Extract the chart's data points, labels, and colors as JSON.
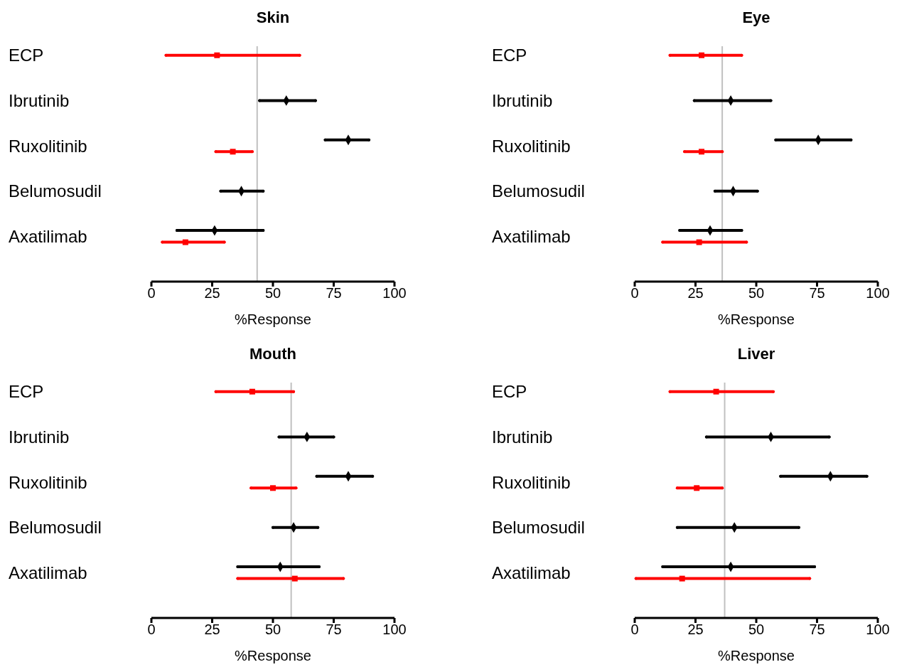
{
  "chart_data": [
    {
      "type": "scatter",
      "orientation": "horizontal",
      "title": "Skin",
      "xlabel": "%Response",
      "categories": [
        "ECP",
        "Ibrutinib",
        "Ruxolitinib",
        "Belumosudil",
        "Axatilimab"
      ],
      "xlim": [
        0,
        100
      ],
      "xticks": [
        0,
        25,
        50,
        75,
        100
      ],
      "grid": false,
      "legend": false,
      "ref_lines": [
        {
          "axis": "x",
          "value": 43.5,
          "color": "#c0c0c0"
        }
      ],
      "series": [
        {
          "color": "#000000",
          "marker": "diamond",
          "values": [
            null,
            55.5,
            81,
            37,
            26
          ],
          "errors": [
            null,
            [
              44.5,
              67.5
            ],
            [
              71.5,
              89.5
            ],
            [
              28.5,
              46
            ],
            [
              10.5,
              46
            ]
          ]
        },
        {
          "color": "#ff0000",
          "marker": "square",
          "values": [
            27,
            null,
            33.5,
            null,
            14
          ],
          "errors": [
            [
              6,
              61
            ],
            null,
            [
              26.5,
              41.5
            ],
            null,
            [
              4.5,
              30
            ]
          ]
        }
      ]
    },
    {
      "type": "scatter",
      "orientation": "horizontal",
      "title": "Eye",
      "xlabel": "%Response",
      "categories": [
        "ECP",
        "Ibrutinib",
        "Ruxolitinib",
        "Belumosudil",
        "Axatilimab"
      ],
      "xlim": [
        0,
        100
      ],
      "xticks": [
        0,
        25,
        50,
        75,
        100
      ],
      "grid": false,
      "legend": false,
      "ref_lines": [
        {
          "axis": "x",
          "value": 36,
          "color": "#c0c0c0"
        }
      ],
      "series": [
        {
          "color": "#000000",
          "marker": "diamond",
          "values": [
            null,
            39.5,
            75.5,
            40.5,
            31
          ],
          "errors": [
            null,
            [
              24.5,
              56
            ],
            [
              58,
              89
            ],
            [
              33,
              50.5
            ],
            [
              18.5,
              44
            ]
          ]
        },
        {
          "color": "#ff0000",
          "marker": "square",
          "values": [
            27.5,
            null,
            27.5,
            null,
            26.5
          ],
          "errors": [
            [
              14.5,
              44
            ],
            null,
            [
              20.5,
              36
            ],
            null,
            [
              11.5,
              46
            ]
          ]
        }
      ]
    },
    {
      "type": "scatter",
      "orientation": "horizontal",
      "title": "Mouth",
      "xlabel": "%Response",
      "categories": [
        "ECP",
        "Ibrutinib",
        "Ruxolitinib",
        "Belumosudil",
        "Axatilimab"
      ],
      "xlim": [
        0,
        100
      ],
      "xticks": [
        0,
        25,
        50,
        75,
        100
      ],
      "grid": false,
      "legend": false,
      "ref_lines": [
        {
          "axis": "x",
          "value": 57.5,
          "color": "#c0c0c0"
        }
      ],
      "series": [
        {
          "color": "#000000",
          "marker": "diamond",
          "values": [
            null,
            64,
            81,
            58.5,
            53
          ],
          "errors": [
            null,
            [
              52.5,
              75
            ],
            [
              68,
              91
            ],
            [
              50,
              68.5
            ],
            [
              35.5,
              69
            ]
          ]
        },
        {
          "color": "#ff0000",
          "marker": "square",
          "values": [
            41.5,
            null,
            50,
            null,
            59
          ],
          "errors": [
            [
              26.5,
              58.5
            ],
            null,
            [
              41,
              59.5
            ],
            null,
            [
              35.5,
              79
            ]
          ]
        }
      ]
    },
    {
      "type": "scatter",
      "orientation": "horizontal",
      "title": "Liver",
      "xlabel": "%Response",
      "categories": [
        "ECP",
        "Ibrutinib",
        "Ruxolitinib",
        "Belumosudil",
        "Axatilimab"
      ],
      "xlim": [
        0,
        100
      ],
      "xticks": [
        0,
        25,
        50,
        75,
        100
      ],
      "grid": false,
      "legend": false,
      "ref_lines": [
        {
          "axis": "x",
          "value": 37,
          "color": "#c0c0c0"
        }
      ],
      "series": [
        {
          "color": "#000000",
          "marker": "diamond",
          "values": [
            null,
            56,
            80.5,
            41,
            39.5
          ],
          "errors": [
            null,
            [
              29.5,
              80
            ],
            [
              60,
              95.5
            ],
            [
              17.5,
              67.5
            ],
            [
              11.5,
              74
            ]
          ]
        },
        {
          "color": "#ff0000",
          "marker": "square",
          "values": [
            33.5,
            null,
            25.5,
            null,
            19.5
          ],
          "errors": [
            [
              14.5,
              57
            ],
            null,
            [
              17.5,
              36
            ],
            null,
            [
              0.5,
              72
            ]
          ]
        }
      ]
    }
  ]
}
